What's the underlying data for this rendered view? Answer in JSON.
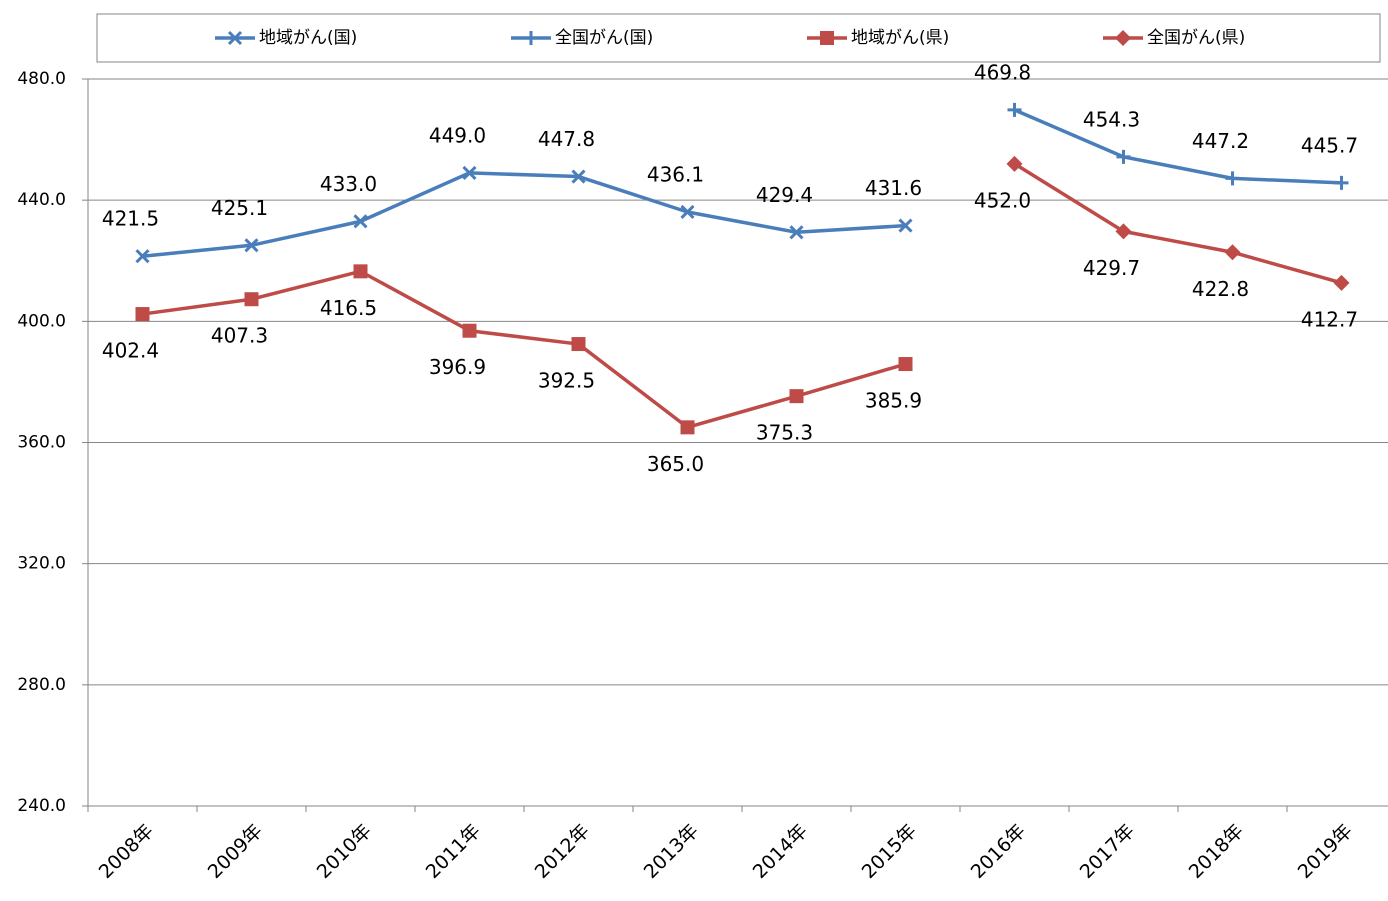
{
  "chart_data": {
    "type": "line",
    "categories": [
      "2008年",
      "2009年",
      "2010年",
      "2011年",
      "2012年",
      "2013年",
      "2014年",
      "2015年",
      "2016年",
      "2017年",
      "2018年",
      "2019年"
    ],
    "series": [
      {
        "name": "地域がん(国)",
        "color": "#4a7ebb",
        "marker": "x",
        "values": [
          421.5,
          425.1,
          433.0,
          449.0,
          447.8,
          436.1,
          429.4,
          431.6,
          null,
          null,
          null,
          null
        ],
        "value_labels": [
          "421.5",
          "425.1",
          "433.0",
          "449.0",
          "447.8",
          "436.1",
          "429.4",
          "431.6",
          null,
          null,
          null,
          null
        ]
      },
      {
        "name": "全国がん(国)",
        "color": "#4a7ebb",
        "marker": "plus",
        "values": [
          null,
          null,
          null,
          null,
          null,
          null,
          null,
          null,
          469.8,
          454.3,
          447.2,
          445.7
        ],
        "value_labels": [
          null,
          null,
          null,
          null,
          null,
          null,
          null,
          null,
          "469.8",
          "454.3",
          "447.2",
          "445.7"
        ]
      },
      {
        "name": "地域がん(県)",
        "color": "#be4b48",
        "marker": "square",
        "values": [
          402.4,
          407.3,
          416.5,
          396.9,
          392.5,
          365.0,
          375.3,
          385.9,
          null,
          null,
          null,
          null
        ],
        "value_labels": [
          "402.4",
          "407.3",
          "416.5",
          "396.9",
          "392.5",
          "365.0",
          "375.3",
          "385.9",
          null,
          null,
          null,
          null
        ]
      },
      {
        "name": "全国がん(県)",
        "color": "#be4b48",
        "marker": "diamond",
        "values": [
          null,
          null,
          null,
          null,
          null,
          null,
          null,
          null,
          452.0,
          429.7,
          422.8,
          412.7
        ],
        "value_labels": [
          null,
          null,
          null,
          null,
          null,
          null,
          null,
          null,
          "452.0",
          "429.7",
          "422.8",
          "412.7"
        ]
      }
    ],
    "ylim": [
      240,
      480
    ],
    "yticks": [
      {
        "value": 240,
        "label": "240.0"
      },
      {
        "value": 280,
        "label": "280.0"
      },
      {
        "value": 320,
        "label": "320.0"
      },
      {
        "value": 360,
        "label": "360.0"
      },
      {
        "value": 400,
        "label": "400.0"
      },
      {
        "value": 440,
        "label": "440.0"
      },
      {
        "value": 480,
        "label": "480.0"
      }
    ],
    "grid": true,
    "legend": "top"
  }
}
